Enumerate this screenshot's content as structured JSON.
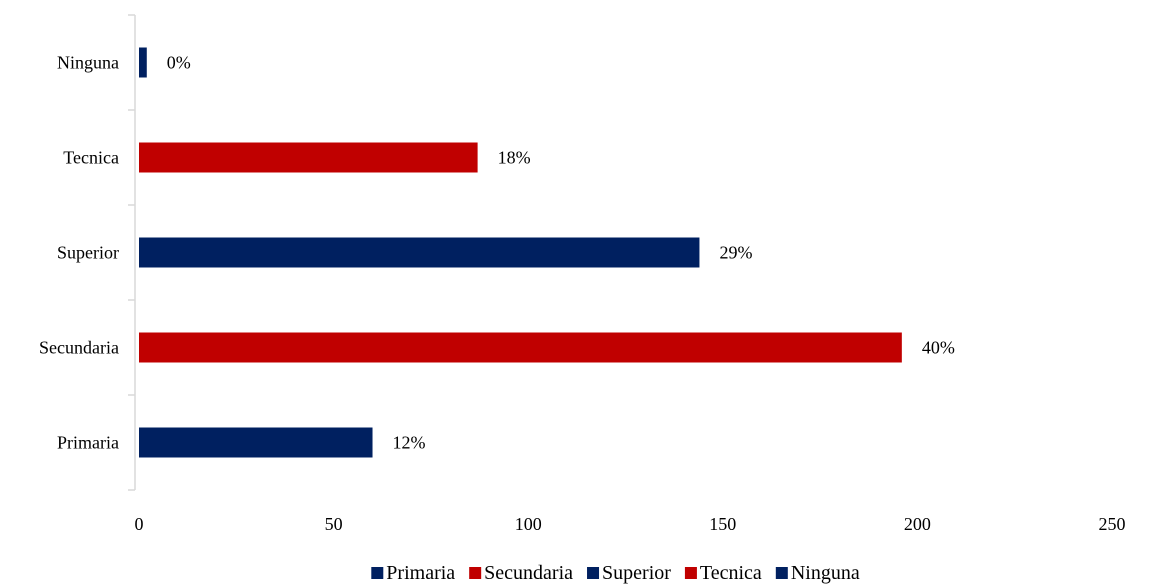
{
  "chart_data": {
    "type": "bar",
    "orientation": "horizontal",
    "categories": [
      "Primaria",
      "Secundaria",
      "Superior",
      "Tecnica",
      "Ninguna"
    ],
    "values": [
      60,
      196,
      144,
      87,
      2
    ],
    "data_labels": [
      "12%",
      "40%",
      "29%",
      "18%",
      "0%"
    ],
    "colors": [
      "#002060",
      "#c00000",
      "#002060",
      "#c00000",
      "#002060"
    ],
    "xlim": [
      0,
      250
    ],
    "x_ticks": [
      "0",
      "50",
      "100",
      "150",
      "200",
      "250"
    ],
    "x_tick_values": [
      0,
      50,
      100,
      150,
      200,
      250
    ],
    "grid": false,
    "legend_position": "bottom",
    "legend": [
      {
        "label": "Primaria",
        "color": "#002060"
      },
      {
        "label": "Secundaria",
        "color": "#c00000"
      },
      {
        "label": "Superior",
        "color": "#002060"
      },
      {
        "label": "Tecnica",
        "color": "#c00000"
      },
      {
        "label": "Ninguna",
        "color": "#002060"
      }
    ]
  }
}
